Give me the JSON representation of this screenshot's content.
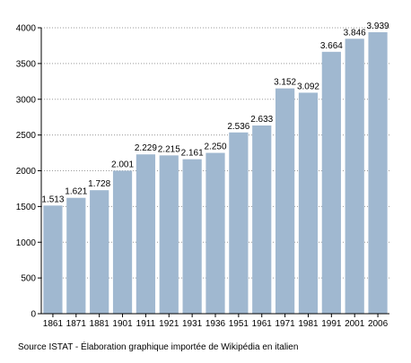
{
  "chart_data": {
    "type": "bar",
    "categories": [
      "1861",
      "1871",
      "1881",
      "1901",
      "1911",
      "1921",
      "1931",
      "1936",
      "1951",
      "1961",
      "1971",
      "1981",
      "1991",
      "2001",
      "2006"
    ],
    "values": [
      1513,
      1621,
      1728,
      2001,
      2229,
      2215,
      2161,
      2250,
      2536,
      2633,
      3152,
      3092,
      3664,
      3846,
      3939
    ],
    "data_labels": [
      "1.513",
      "1.621",
      "1.728",
      "2.001",
      "2.229",
      "2.215",
      "2.161",
      "2.250",
      "2.536",
      "2.633",
      "3.152",
      "3.092",
      "3.664",
      "3.846",
      "3.939"
    ],
    "ylim": [
      0,
      4000
    ],
    "yticks": [
      0,
      500,
      1000,
      1500,
      2000,
      2500,
      3000,
      3500,
      4000
    ],
    "ytick_labels": [
      "0",
      "500",
      "1000",
      "1500",
      "2000",
      "2500",
      "3000",
      "3500",
      "4000"
    ],
    "grid": "horizontal dotted",
    "bar_color": "#a0b8d0",
    "title": "",
    "xlabel": "",
    "ylabel": ""
  },
  "source_text": "Source ISTAT - Élaboration graphique importée de Wikipédia en italien"
}
